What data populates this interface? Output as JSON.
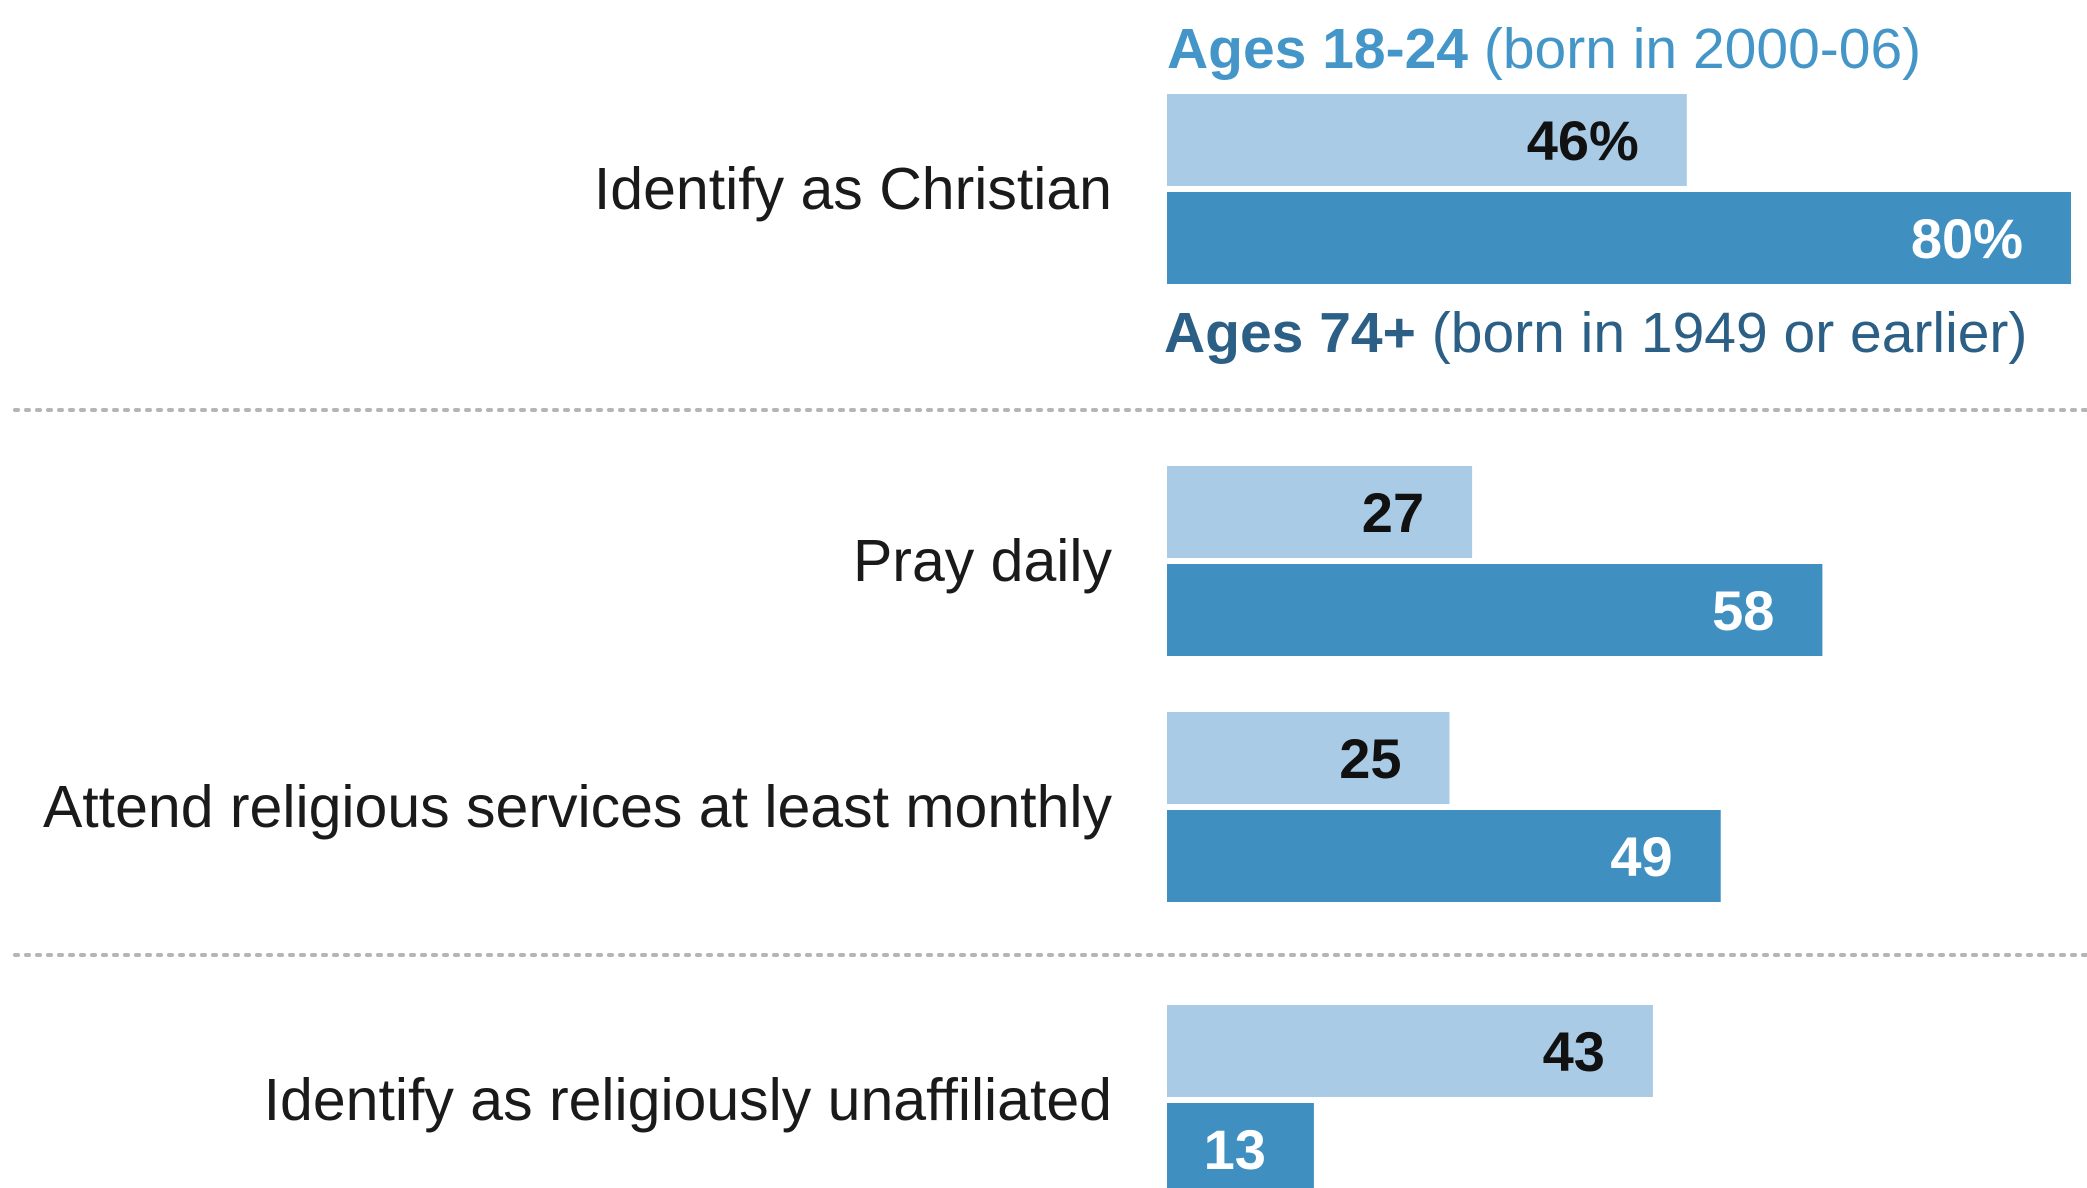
{
  "chart_data": {
    "type": "bar",
    "orientation": "horizontal",
    "categories": [
      "Identify as Christian",
      "Pray daily",
      "Attend religious services at least monthly",
      "Identify as religiously unaffiliated"
    ],
    "series": [
      {
        "name": "Ages 18-24",
        "name_note": "(born in 2000-06)",
        "color": "#a9cbe5",
        "label_color": "#111111",
        "values": [
          46,
          27,
          25,
          43
        ],
        "data_labels": [
          "46%",
          "27",
          "25",
          "43"
        ]
      },
      {
        "name": "Ages 74+",
        "name_note": "(born in 1949 or earlier)",
        "color": "#3f8fc1",
        "label_color": "#ffffff",
        "values": [
          80,
          58,
          49,
          13
        ],
        "data_labels": [
          "80%",
          "58",
          "49",
          "13"
        ]
      }
    ],
    "series_label_colors": [
      "#4596c8",
      "#2b5f86"
    ],
    "xlim": [
      0,
      80
    ],
    "gridlines": false,
    "legend": "direct labels on first category",
    "separators": "dotted lines between groups",
    "separator_color": "#b5b5b5"
  }
}
